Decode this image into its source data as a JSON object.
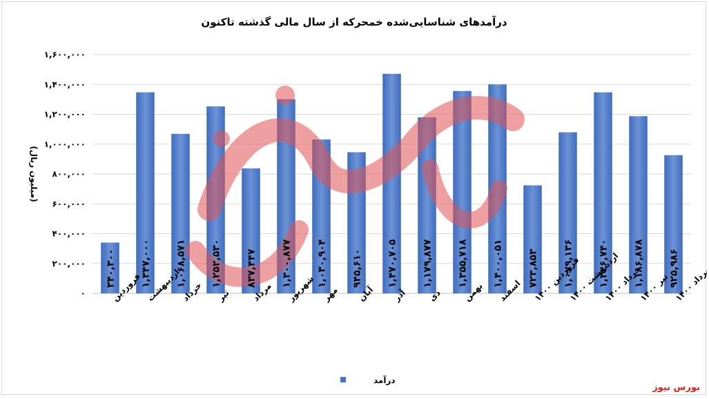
{
  "source_label": "بورس نیوز",
  "colors": {
    "bar": "#4472c4",
    "bar_light": "#6b93d6",
    "watermark": "#e15454"
  },
  "chart_data": {
    "type": "bar",
    "title": "درآمدهای شناسایی‌شده خمحرکه از سال مالی گذشته تاکنون",
    "ylabel": "(میلیون ریال)",
    "xlabel": "",
    "ylim": [
      0,
      1600000
    ],
    "yticks": [
      0,
      200000,
      400000,
      600000,
      800000,
      1000000,
      1200000,
      1400000,
      1600000
    ],
    "ytick_labels": [
      "۰",
      "۲۰۰,۰۰۰",
      "۴۰۰,۰۰۰",
      "۶۰۰,۰۰۰",
      "۸۰۰,۰۰۰",
      "۱,۰۰۰,۰۰۰",
      "۱,۲۰۰,۰۰۰",
      "۱,۴۰۰,۰۰۰",
      "۱,۶۰۰,۰۰۰"
    ],
    "grid": true,
    "legend": "bottom",
    "categories": [
      "فروردین",
      "اردیبهشت",
      "خرداد",
      "تیر",
      "مرداد",
      "شهریور",
      "مهر",
      "آبان",
      "آذر",
      "دی",
      "بهمن",
      "اسفند",
      "فروردین ۱۴۰۰",
      "اردیبهشت ۱۴۰۰",
      "خرداد ۱۴۰۰",
      "تیر ۱۴۰۰",
      "مرداد ۱۴۰۰"
    ],
    "series": [
      {
        "name": "درآمد",
        "values": [
          340300,
          1347000,
          1068571,
          1252530,
          837447,
          1300877,
          1030904,
          945610,
          1470705,
          1179877,
          1355718,
          1400051,
          723853,
          1079136,
          1346740,
          1186878,
          925986
        ],
        "value_labels": [
          "۳۴۰,۳۰۰",
          "۱,۳۴۷,۰۰۰",
          "۱,۰۶۸,۵۷۱",
          "۱,۲۵۲,۵۳۰",
          "۸۳۷,۴۴۷",
          "۱,۳۰۰,۸۷۷",
          "۱,۰۳۰,۹۰۴",
          "۹۴۵,۶۱۰",
          "۱,۴۷۰,۷۰۵",
          "۱,۱۷۹,۸۷۷",
          "۱,۳۵۵,۷۱۸",
          "۱,۴۰۰,۰۵۱",
          "۷۲۳,۸۵۳",
          "۱,۰۷۹,۱۳۶",
          "۱,۳۴۶,۷۴۰",
          "۱,۱۸۶,۸۷۸",
          "۹۲۵,۹۸۶"
        ]
      }
    ]
  }
}
